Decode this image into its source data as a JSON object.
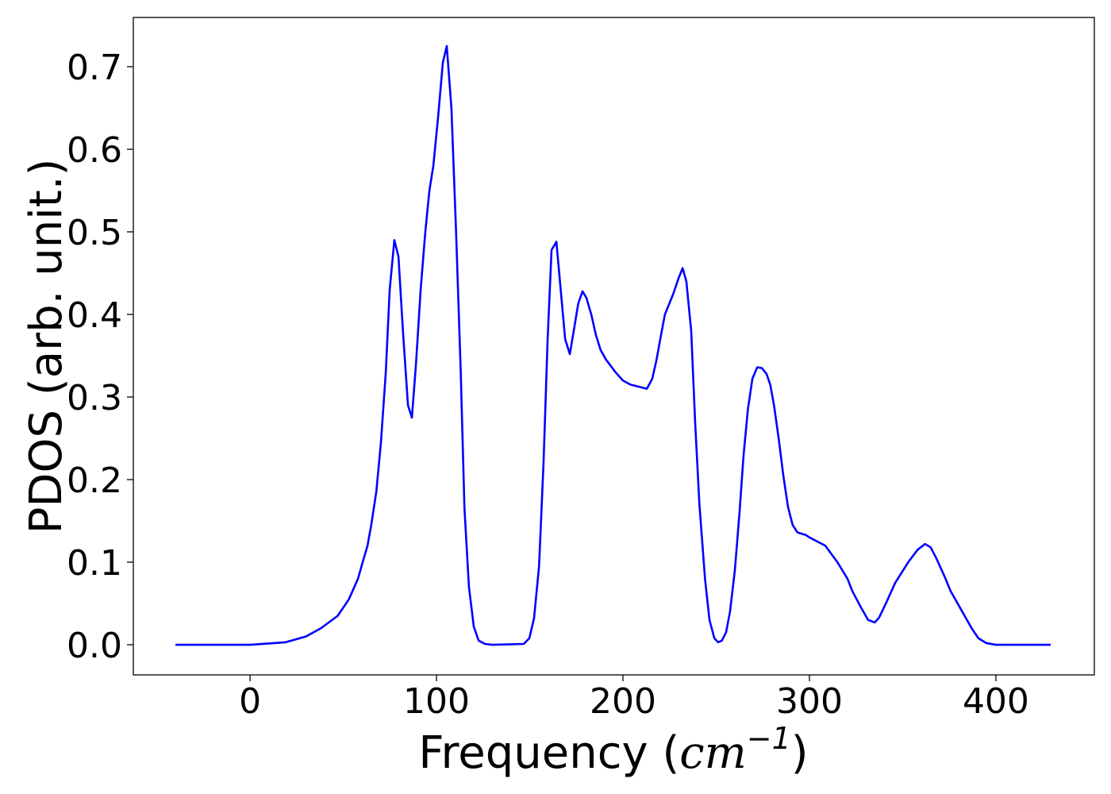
{
  "chart_data": {
    "type": "line",
    "y_label": "PDOS (arb. unit.)",
    "x_label_parts": [
      "Frequency (",
      "cm",
      "−1",
      ")"
    ],
    "xlim": [
      -62.6,
      452.8
    ],
    "ylim": [
      -0.0365,
      0.7596
    ],
    "xticks": [
      0,
      100,
      200,
      300,
      400
    ],
    "yticks": [
      {
        "value": 0,
        "label": "0.0"
      },
      0.1,
      0.2,
      0.3,
      0.4,
      0.5,
      0.6,
      0.7
    ],
    "grid": false,
    "series": [
      {
        "name": "PDOS",
        "color": "#0000ff",
        "x": [
          -40,
          0,
          19,
          30,
          38,
          47,
          53,
          57.9,
          60.4,
          63,
          65,
          67.7,
          70.2,
          72.8,
          74.9,
          77.4,
          79.6,
          82,
          84.7,
          86.8,
          89,
          91.5,
          94,
          96.2,
          98.3,
          100.9,
          103.4,
          105.5,
          108,
          110.5,
          113,
          115,
          117.4,
          120,
          122.6,
          126,
          130,
          146.8,
          149.8,
          152.3,
          155,
          157.4,
          159.6,
          161.7,
          164.3,
          167,
          169,
          171.5,
          173.6,
          176,
          178.3,
          180.4,
          183,
          185.5,
          188,
          191,
          196,
          200,
          204,
          212.8,
          215.7,
          218,
          220.4,
          222.5,
          227,
          230,
          232,
          234,
          236.6,
          238.7,
          241,
          244,
          246.4,
          249,
          251,
          253,
          255.3,
          257.4,
          260,
          262.5,
          264.7,
          267,
          269.4,
          272,
          274.5,
          277,
          279,
          281,
          283.5,
          286,
          288.5,
          291,
          293.6,
          298,
          300,
          308.5,
          315,
          320.4,
          323,
          327.7,
          331.5,
          335,
          337.4,
          341,
          346,
          353,
          358,
          362,
          365,
          368,
          373,
          375.7,
          382,
          387,
          390.6,
          394.9,
          400,
          429.4
        ],
        "values": [
          0,
          0,
          0.003,
          0.01,
          0.02,
          0.035,
          0.055,
          0.08,
          0.1,
          0.12,
          0.145,
          0.185,
          0.245,
          0.33,
          0.43,
          0.49,
          0.47,
          0.38,
          0.29,
          0.275,
          0.34,
          0.43,
          0.5,
          0.55,
          0.58,
          0.64,
          0.705,
          0.725,
          0.65,
          0.5,
          0.33,
          0.165,
          0.07,
          0.022,
          0.005,
          0.001,
          0,
          0.001,
          0.008,
          0.032,
          0.095,
          0.22,
          0.37,
          0.478,
          0.488,
          0.42,
          0.37,
          0.352,
          0.38,
          0.413,
          0.428,
          0.42,
          0.4,
          0.375,
          0.357,
          0.345,
          0.33,
          0.32,
          0.315,
          0.31,
          0.322,
          0.345,
          0.375,
          0.4,
          0.425,
          0.445,
          0.456,
          0.44,
          0.38,
          0.27,
          0.17,
          0.08,
          0.03,
          0.008,
          0.003,
          0.005,
          0.015,
          0.04,
          0.09,
          0.16,
          0.23,
          0.285,
          0.322,
          0.336,
          0.335,
          0.328,
          0.315,
          0.29,
          0.25,
          0.205,
          0.167,
          0.145,
          0.136,
          0.133,
          0.13,
          0.12,
          0.1,
          0.08,
          0.065,
          0.045,
          0.03,
          0.027,
          0.033,
          0.05,
          0.075,
          0.1,
          0.115,
          0.122,
          0.118,
          0.105,
          0.08,
          0.065,
          0.04,
          0.02,
          0.008,
          0.002,
          0,
          0
        ]
      }
    ]
  }
}
